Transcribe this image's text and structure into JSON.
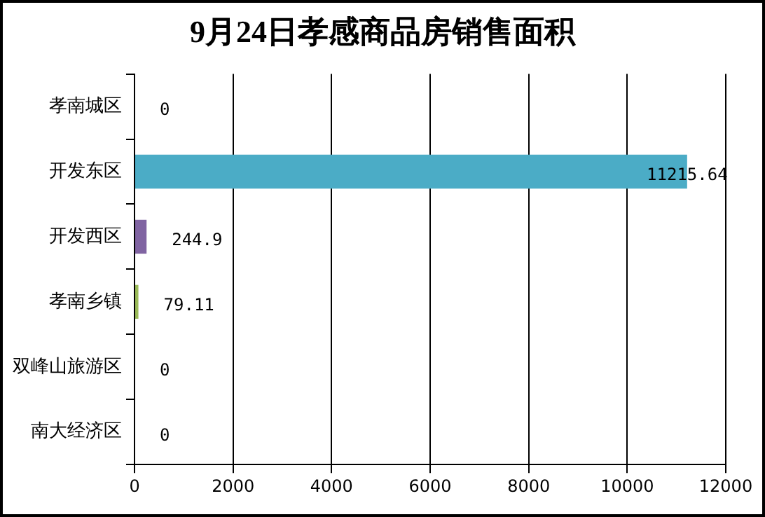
{
  "chart_data": {
    "type": "bar",
    "orientation": "horizontal",
    "title": "9月24日孝感商品房销售面积",
    "categories": [
      "孝南城区",
      "开发东区",
      "开发西区",
      "孝南乡镇",
      "双峰山旅游区",
      "南大经济区"
    ],
    "values": [
      0,
      11215.64,
      244.9,
      79.11,
      0,
      0
    ],
    "colors": [
      "#4bacc6",
      "#4bacc6",
      "#8064a2",
      "#9bbb59",
      "#4bacc6",
      "#4bacc6"
    ],
    "xlim": [
      0,
      12000
    ],
    "xticks": [
      0,
      2000,
      4000,
      6000,
      8000,
      10000,
      12000
    ],
    "grid": "x",
    "data_labels": true,
    "legend": false
  }
}
